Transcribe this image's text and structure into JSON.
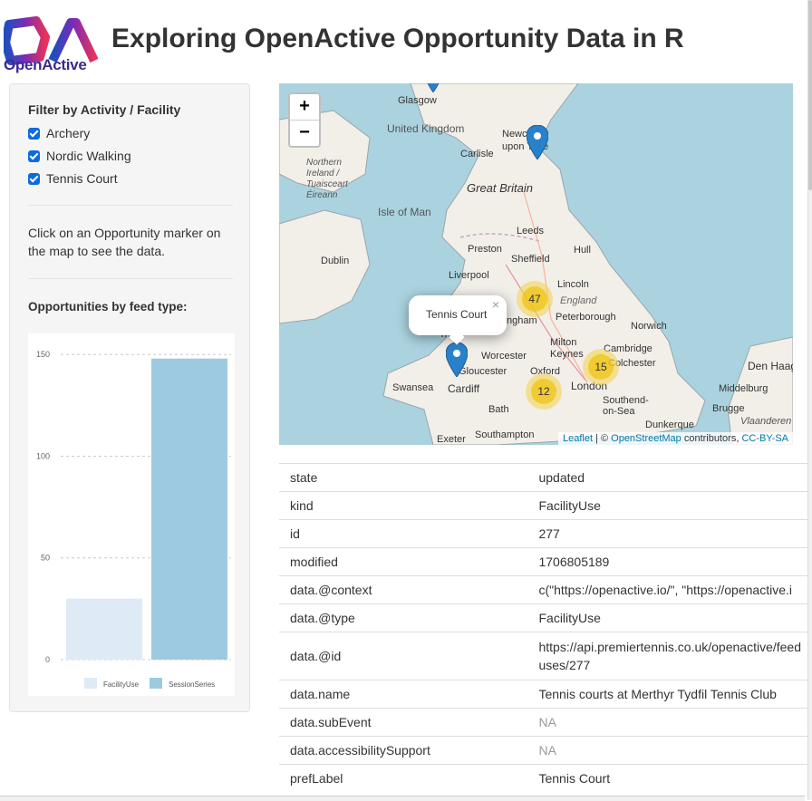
{
  "header": {
    "brand": "OpenActive",
    "title": "Exploring OpenActive Opportunity Data in R"
  },
  "sidebar": {
    "filter_title": "Filter by Activity / Facility",
    "filters": [
      {
        "label": "Archery",
        "checked": true
      },
      {
        "label": "Nordic Walking",
        "checked": true
      },
      {
        "label": "Tennis Court",
        "checked": true
      }
    ],
    "help_text": "Click on an Opportunity marker on the map to see the data.",
    "chart_title": "Opportunities by feed type:"
  },
  "chart_data": {
    "type": "bar",
    "categories": [
      "FacilityUse",
      "SessionSeries"
    ],
    "values": [
      30,
      148
    ],
    "ylim": [
      0,
      155
    ],
    "yticks": [
      "0",
      "50",
      "100",
      "150"
    ],
    "colors": [
      "#deebf7",
      "#9ecae1"
    ],
    "legend": [
      "FacilityUse",
      "SessionSeries"
    ],
    "grid": true
  },
  "map": {
    "zoom_in": "+",
    "zoom_out": "−",
    "place_labels": [
      "Glasgow",
      "United Kingdom",
      "Newcastle upon Tyne",
      "Carlisle",
      "Great Britain",
      "Northern Ireland / Tuaisceart Éireann",
      "Isle of Man",
      "Leeds",
      "Preston",
      "Hull",
      "Dublin",
      "Sheffield",
      "Liverpool",
      "Lincoln",
      "England",
      "Birmingham",
      "Peterborough",
      "Norwich",
      "Milton Keynes",
      "Cambridge",
      "Worcester",
      "Gloucester",
      "Oxford",
      "Colchester",
      "Den Haag",
      "Swansea",
      "Cardiff",
      "London",
      "Southend-on-Sea",
      "Middelburg",
      "Bath",
      "Brugge",
      "Exeter",
      "Southampton",
      "Dunkerque",
      "Vlaanderen",
      "Wales"
    ],
    "clusters": [
      {
        "count": "47"
      },
      {
        "count": "15"
      },
      {
        "count": "12"
      }
    ],
    "popup": "Tennis Court",
    "attribution": {
      "leaflet": "Leaflet",
      "sep": " | © ",
      "osm": "OpenStreetMap",
      "mid": " contributors, ",
      "license": "CC-BY-SA"
    }
  },
  "details": [
    {
      "key": "state",
      "value": "updated"
    },
    {
      "key": "kind",
      "value": "FacilityUse"
    },
    {
      "key": "id",
      "value": "277"
    },
    {
      "key": "modified",
      "value": "1706805189"
    },
    {
      "key": "data.@context",
      "value": "c(\"https://openactive.io/\", \"https://openactive.i"
    },
    {
      "key": "data.@type",
      "value": "FacilityUse"
    },
    {
      "key": "data.@id",
      "value": "https://api.premiertennis.co.uk/openactive/feed uses/277"
    },
    {
      "key": "data.name",
      "value": "Tennis courts at Merthyr Tydfil Tennis Club"
    },
    {
      "key": "data.subEvent",
      "value": "NA"
    },
    {
      "key": "data.accessibilitySupport",
      "value": "NA"
    },
    {
      "key": "prefLabel",
      "value": "Tennis Court"
    }
  ]
}
